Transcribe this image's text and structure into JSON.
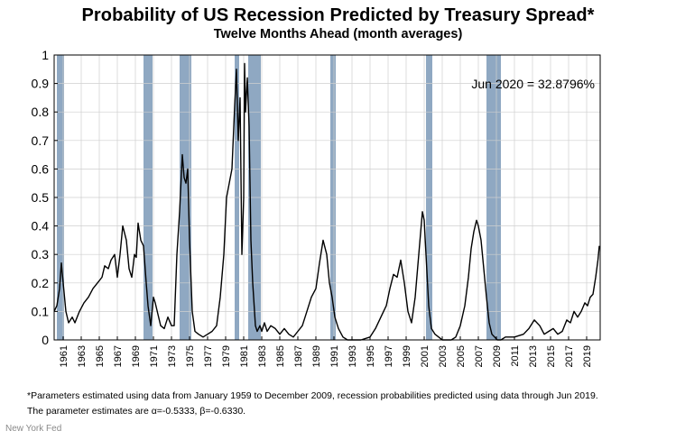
{
  "chart_data": {
    "type": "line",
    "title": "Probability of US Recession Predicted by Treasury Spread*",
    "subtitle": "Twelve Months Ahead (month averages)",
    "xlabel": "",
    "ylabel": "",
    "xlim": [
      1960,
      2020.5
    ],
    "ylim": [
      0,
      1
    ],
    "y_ticks": [
      "0",
      "0.1",
      "0.2",
      "0.3",
      "0.4",
      "0.5",
      "0.6",
      "0.7",
      "0.8",
      "0.9",
      "1"
    ],
    "x_ticks": [
      "1961",
      "1963",
      "1965",
      "1967",
      "1969",
      "1971",
      "1973",
      "1975",
      "1977",
      "1979",
      "1981",
      "1983",
      "1985",
      "1987",
      "1989",
      "1991",
      "1993",
      "1995",
      "1997",
      "1999",
      "2001",
      "2003",
      "2005",
      "2007",
      "2009",
      "2011",
      "2013",
      "2015",
      "2017",
      "2019"
    ],
    "grid": true,
    "annotation": "Jun 2020 = 32.8796%",
    "recessions": [
      {
        "start": 1960.3,
        "end": 1961.1
      },
      {
        "start": 1969.9,
        "end": 1970.9
      },
      {
        "start": 1973.9,
        "end": 1975.2
      },
      {
        "start": 1980.0,
        "end": 1980.5
      },
      {
        "start": 1981.5,
        "end": 1982.9
      },
      {
        "start": 1990.6,
        "end": 1991.2
      },
      {
        "start": 2001.2,
        "end": 2001.9
      },
      {
        "start": 2007.9,
        "end": 2009.5
      }
    ],
    "series": [
      {
        "x": [
          1960.0,
          1960.3,
          1960.6,
          1960.8,
          1961.0,
          1961.3,
          1961.6,
          1962.0,
          1962.3,
          1962.8,
          1963.3,
          1963.8,
          1964.3,
          1964.8,
          1965.3,
          1965.6,
          1966.0,
          1966.3,
          1966.7,
          1967.0,
          1967.3,
          1967.6,
          1968.0,
          1968.3,
          1968.6,
          1968.9,
          1969.1,
          1969.3,
          1969.6,
          1969.9,
          1970.2,
          1970.4,
          1970.7,
          1971.0,
          1971.2,
          1971.5,
          1971.8,
          1972.2,
          1972.6,
          1973.0,
          1973.3,
          1973.6,
          1973.9,
          1974.2,
          1974.4,
          1974.6,
          1974.8,
          1975.0,
          1975.3,
          1975.6,
          1976.0,
          1976.5,
          1977.0,
          1977.5,
          1978.0,
          1978.4,
          1978.8,
          1979.1,
          1979.4,
          1979.7,
          1980.0,
          1980.2,
          1980.4,
          1980.6,
          1980.8,
          1981.0,
          1981.1,
          1981.2,
          1981.4,
          1981.6,
          1981.8,
          1982.0,
          1982.1,
          1982.3,
          1982.5,
          1982.8,
          1983.0,
          1983.3,
          1983.6,
          1984.0,
          1984.5,
          1985.0,
          1985.5,
          1986.0,
          1986.5,
          1987.0,
          1987.5,
          1988.0,
          1988.5,
          1989.0,
          1989.4,
          1989.8,
          1990.2,
          1990.5,
          1990.8,
          1991.1,
          1991.5,
          1992.0,
          1992.5,
          1993.0,
          1994.0,
          1995.0,
          1995.6,
          1996.2,
          1996.8,
          1997.2,
          1997.6,
          1998.0,
          1998.4,
          1998.8,
          1999.2,
          1999.6,
          2000.0,
          2000.4,
          2000.8,
          2001.0,
          2001.2,
          2001.5,
          2001.8,
          2002.2,
          2002.6,
          2003.0,
          2003.5,
          2004.0,
          2004.5,
          2005.0,
          2005.5,
          2005.9,
          2006.2,
          2006.5,
          2006.8,
          2007.0,
          2007.3,
          2007.6,
          2007.9,
          2008.2,
          2008.5,
          2008.8,
          2009.1,
          2009.5,
          2010.0,
          2011.0,
          2012.0,
          2012.6,
          2013.2,
          2013.8,
          2014.3,
          2014.8,
          2015.3,
          2015.8,
          2016.3,
          2016.8,
          2017.2,
          2017.6,
          2018.0,
          2018.4,
          2018.8,
          2019.1,
          2019.4,
          2019.7,
          2020.0,
          2020.25,
          2020.4
        ],
        "values": [
          0.1,
          0.12,
          0.18,
          0.27,
          0.2,
          0.1,
          0.06,
          0.08,
          0.06,
          0.1,
          0.13,
          0.15,
          0.18,
          0.2,
          0.22,
          0.26,
          0.25,
          0.28,
          0.3,
          0.22,
          0.3,
          0.4,
          0.35,
          0.25,
          0.22,
          0.3,
          0.29,
          0.41,
          0.35,
          0.33,
          0.2,
          0.12,
          0.05,
          0.15,
          0.13,
          0.09,
          0.05,
          0.04,
          0.08,
          0.05,
          0.05,
          0.3,
          0.45,
          0.65,
          0.57,
          0.55,
          0.6,
          0.35,
          0.1,
          0.03,
          0.02,
          0.01,
          0.02,
          0.03,
          0.05,
          0.15,
          0.3,
          0.5,
          0.55,
          0.6,
          0.82,
          0.95,
          0.7,
          0.85,
          0.3,
          0.5,
          0.97,
          0.8,
          0.92,
          0.75,
          0.35,
          0.2,
          0.15,
          0.05,
          0.03,
          0.05,
          0.03,
          0.06,
          0.03,
          0.05,
          0.04,
          0.02,
          0.04,
          0.02,
          0.01,
          0.03,
          0.05,
          0.1,
          0.15,
          0.18,
          0.27,
          0.35,
          0.3,
          0.2,
          0.15,
          0.08,
          0.04,
          0.01,
          0.0,
          0.0,
          0.0,
          0.01,
          0.04,
          0.08,
          0.12,
          0.18,
          0.23,
          0.22,
          0.28,
          0.2,
          0.1,
          0.06,
          0.15,
          0.3,
          0.45,
          0.42,
          0.3,
          0.12,
          0.04,
          0.02,
          0.01,
          0.0,
          0.0,
          0.0,
          0.01,
          0.05,
          0.12,
          0.22,
          0.32,
          0.38,
          0.42,
          0.4,
          0.35,
          0.25,
          0.15,
          0.06,
          0.02,
          0.01,
          0.0,
          0.0,
          0.01,
          0.01,
          0.02,
          0.04,
          0.07,
          0.05,
          0.02,
          0.03,
          0.04,
          0.02,
          0.03,
          0.07,
          0.06,
          0.1,
          0.08,
          0.1,
          0.13,
          0.12,
          0.15,
          0.16,
          0.22,
          0.28,
          0.33
        ]
      }
    ]
  },
  "footnotes": {
    "line1": "*Parameters estimated using data from January 1959 to December 2009, recession probabilities predicted using data through Jun 2019.",
    "line2": "The parameter estimates are α=-0.5333, β=-0.6330."
  },
  "source": "New York Fed",
  "colors": {
    "recession_band": "#8fa8c2",
    "line": "#000000",
    "grid": "#cfcfcf"
  }
}
